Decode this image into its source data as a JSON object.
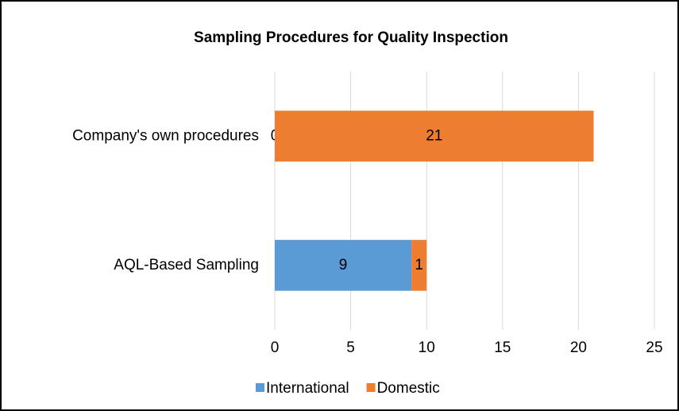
{
  "chart_data": {
    "type": "stacked_barh",
    "title": "Sampling Procedures for Quality Inspection",
    "categories": [
      "Company's own procedures",
      "AQL-Based Sampling"
    ],
    "series": [
      {
        "name": "International",
        "color": "#5b9bd5",
        "values": [
          0,
          9
        ]
      },
      {
        "name": "Domestic",
        "color": "#ed7d31",
        "values": [
          21,
          1
        ]
      }
    ],
    "xlim": [
      0,
      25
    ],
    "xticks": [
      0,
      5,
      10,
      15,
      20,
      25
    ],
    "grid": true,
    "legend": "bottom"
  }
}
